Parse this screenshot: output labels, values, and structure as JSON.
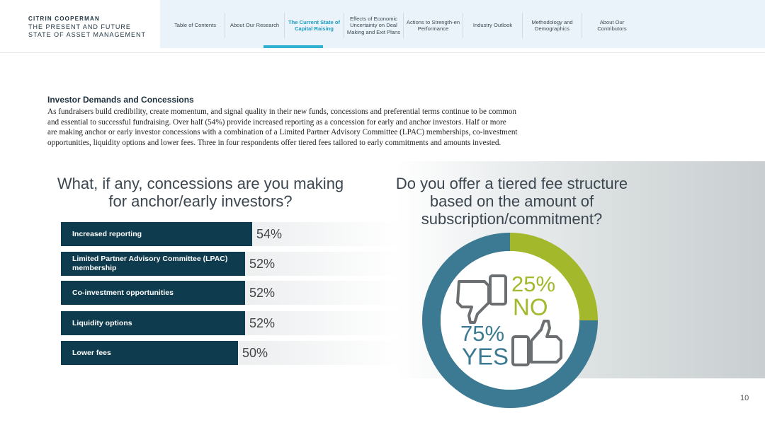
{
  "header": {
    "brand": "CITRIN COOPERMAN",
    "title": "THE PRESENT AND FUTURE STATE OF ASSET MANAGEMENT"
  },
  "nav": {
    "items": [
      "Table of Contents",
      "About Our Research",
      "The Current State of Capital Raising",
      "Effects of Economic Uncertainty on Deal Making and Exit Plans",
      "Actions to Strength-en Performance",
      "Industry Outlook",
      "Methodology and Demographics",
      "About Our Contributors"
    ],
    "active": 2
  },
  "section": {
    "heading": "Investor Demands and Concessions",
    "body": "As fundraisers build credibility, create momentum, and signal quality in their new funds, concessions and preferential terms continue to be common and essential to successful fundraising. Over half (54%) provide increased reporting as a concession for early and anchor investors. Half or more are making anchor or early investor concessions with a combination of a Limited Partner Advisory Committee (LPAC) memberships, co-investment opportunities, liquidity options and lower fees. Three in four respondents offer tiered fees tailored to early commitments and amounts invested."
  },
  "chart_data": [
    {
      "type": "bar",
      "title": "What, if any, concessions are you making for anchor/early investors?",
      "categories": [
        "Increased reporting",
        "Limited Partner Advisory Committee (LPAC) membership",
        "Co-investment opportunities",
        "Liquidity options",
        "Lower fees"
      ],
      "values": [
        54,
        52,
        52,
        52,
        50
      ],
      "value_labels": [
        "54%",
        "52%",
        "52%",
        "52%",
        "50%"
      ],
      "color": "#0f3b4e"
    },
    {
      "type": "donut",
      "title": "Do you offer a tiered fee structure based on the amount of subscription/commitment?",
      "categories": [
        "NO",
        "YES"
      ],
      "values": [
        25,
        75
      ],
      "value_labels": [
        "25%",
        "75%"
      ],
      "colors": [
        "#a4b82c",
        "#3b7a92"
      ]
    }
  ],
  "page_number": "10"
}
